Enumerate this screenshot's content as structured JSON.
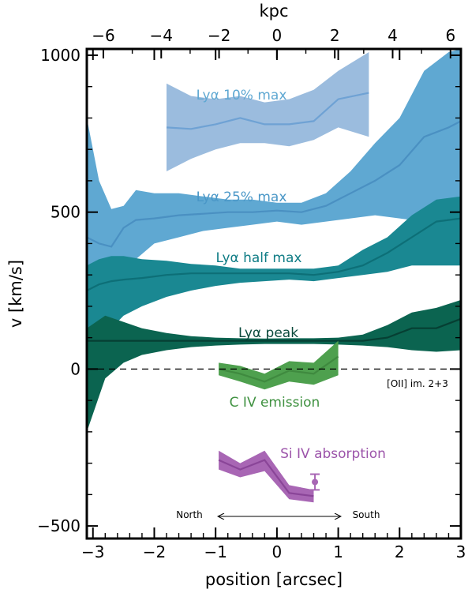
{
  "chart_data": {
    "type": "area",
    "xlabel": "position [arcsec]",
    "ylabel": "v [km/s]",
    "top_xlabel": "kpc",
    "xlim": [
      -3.1,
      3.0
    ],
    "ylim": [
      -540,
      1020
    ],
    "x_ticks": [
      "-3",
      "-2",
      "-1",
      "0",
      "1",
      "2",
      "3"
    ],
    "y_ticks": [
      "-500",
      "0",
      "500",
      "1000"
    ],
    "top_ticks": [
      "-6",
      "-4",
      "-2",
      "0",
      "2",
      "4",
      "6"
    ],
    "kpc_per_arcsec": 2.12,
    "zero_line": "dashed",
    "colors": {
      "lya10": "#9bbcde",
      "lya10_line": "#6fa2d4",
      "lya25": "#5fa8d2",
      "lya25_line": "#4a90c2",
      "half": "#1a8892",
      "half_line": "#0d6f77",
      "peak": "#0b6450",
      "peak_line": "#063f33",
      "civ": "#4ea04e",
      "civ_line": "#3f8a3f",
      "siiv": "#a866b4",
      "siiv_line": "#8a4598",
      "annot": "#000000"
    },
    "series": [
      {
        "name": "Lyα 10% max",
        "x": [
          -1.8,
          -1.4,
          -1.0,
          -0.6,
          -0.2,
          0.2,
          0.6,
          1.0,
          1.5
        ],
        "y": [
          770,
          765,
          780,
          800,
          780,
          780,
          790,
          860,
          880
        ],
        "lower": [
          630,
          670,
          700,
          720,
          720,
          710,
          730,
          770,
          740
        ],
        "upper": [
          910,
          870,
          860,
          870,
          850,
          860,
          890,
          950,
          1010
        ]
      },
      {
        "name": "Lyα 25% max",
        "x": [
          -3.1,
          -2.9,
          -2.7,
          -2.5,
          -2.3,
          -2.0,
          -1.6,
          -1.2,
          -0.8,
          -0.4,
          0.0,
          0.4,
          0.8,
          1.2,
          1.6,
          2.0,
          2.4,
          2.8,
          3.0
        ],
        "y": [
          420,
          400,
          390,
          450,
          475,
          480,
          490,
          495,
          500,
          500,
          505,
          500,
          520,
          560,
          600,
          650,
          740,
          770,
          790
        ],
        "lower": [
          150,
          220,
          180,
          280,
          350,
          400,
          420,
          440,
          450,
          460,
          470,
          460,
          470,
          480,
          490,
          480,
          470,
          460,
          460
        ],
        "upper": [
          800,
          600,
          510,
          520,
          570,
          560,
          560,
          550,
          540,
          540,
          530,
          530,
          560,
          630,
          720,
          800,
          950,
          1010,
          1020
        ]
      },
      {
        "name": "Lyα half max",
        "x": [
          -3.1,
          -2.9,
          -2.7,
          -2.5,
          -2.2,
          -1.8,
          -1.4,
          -1.0,
          -0.6,
          -0.2,
          0.2,
          0.6,
          1.0,
          1.4,
          1.8,
          2.2,
          2.6,
          3.0
        ],
        "y": [
          250,
          270,
          280,
          285,
          290,
          300,
          305,
          305,
          305,
          305,
          305,
          300,
          310,
          330,
          370,
          420,
          470,
          480
        ],
        "lower": [
          30,
          80,
          130,
          170,
          200,
          230,
          250,
          265,
          275,
          280,
          285,
          280,
          290,
          300,
          310,
          330,
          330,
          330
        ],
        "upper": [
          330,
          350,
          360,
          360,
          350,
          345,
          335,
          330,
          320,
          320,
          320,
          320,
          330,
          380,
          420,
          490,
          540,
          550
        ]
      },
      {
        "name": "Lyα peak",
        "x": [
          -3.1,
          -2.8,
          -2.5,
          -2.2,
          -1.8,
          -1.4,
          -1.0,
          -0.6,
          -0.2,
          0.2,
          0.6,
          1.0,
          1.4,
          1.8,
          2.2,
          2.6,
          3.0
        ],
        "y": [
          90,
          90,
          90,
          90,
          90,
          90,
          90,
          90,
          90,
          90,
          90,
          90,
          90,
          100,
          130,
          130,
          160
        ],
        "lower": [
          -200,
          -30,
          20,
          45,
          60,
          70,
          75,
          78,
          80,
          80,
          80,
          78,
          75,
          70,
          60,
          55,
          60
        ],
        "upper": [
          130,
          170,
          150,
          130,
          115,
          105,
          100,
          98,
          97,
          98,
          98,
          100,
          110,
          140,
          180,
          195,
          220
        ]
      },
      {
        "name": "C IV emission",
        "x": [
          -0.95,
          -0.6,
          -0.2,
          0.2,
          0.6,
          1.0
        ],
        "y": [
          0,
          -15,
          -40,
          -5,
          -15,
          40
        ],
        "lower": [
          -20,
          -40,
          -65,
          -40,
          -50,
          -20
        ],
        "upper": [
          20,
          10,
          -15,
          25,
          20,
          90
        ]
      },
      {
        "name": "Si IV absorption",
        "x": [
          -0.95,
          -0.6,
          -0.2,
          0.2,
          0.6,
          1.0
        ],
        "y": [
          -290,
          -320,
          -290,
          -395,
          -405,
          null
        ],
        "lower": [
          -320,
          -345,
          -325,
          -415,
          -425,
          null
        ],
        "upper": [
          -260,
          -300,
          -260,
          -370,
          -385,
          null
        ]
      }
    ],
    "siiv_errorbar": {
      "x": 0.62,
      "y": -360,
      "err": 25
    },
    "annotations": {
      "lya10": "Lyα 10% max",
      "lya25": "Lyα 25% max",
      "half": "Lyα half max",
      "peak": "Lyα peak",
      "civ": "C IV emission",
      "siiv": "Si IV absorption",
      "oii": "[OII] im. 2+3",
      "north": "North",
      "south": "South"
    }
  }
}
